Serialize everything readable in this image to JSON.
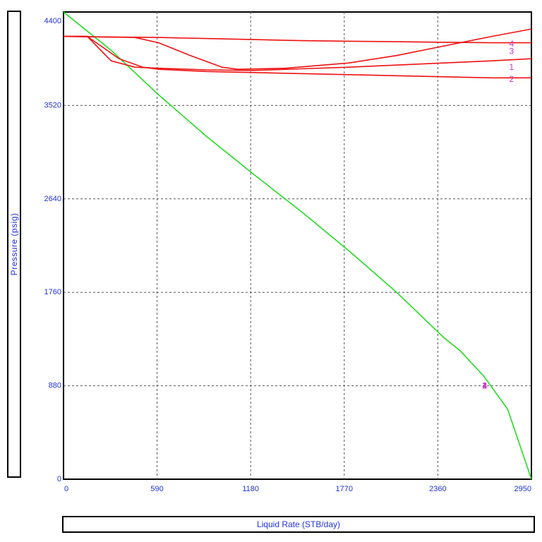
{
  "chart_data": {
    "type": "line",
    "xlabel": "Liquid Rate (STB/day)",
    "ylabel": "Pressure (psig)",
    "xlim": [
      0,
      2950
    ],
    "ylim": [
      0,
      4400
    ],
    "x_ticks": [
      "0",
      "590",
      "1180",
      "1770",
      "2360",
      "2950"
    ],
    "y_ticks": [
      "0",
      "880",
      "1760",
      "2640",
      "3520",
      "4400"
    ],
    "grid": true,
    "colors": {
      "ipr": "#22dd22",
      "vlp": "#ee1111",
      "axis_text": "#2233dd",
      "curve_label": "#cc33cc"
    },
    "series": [
      {
        "role": "ipr",
        "x": [
          0,
          300,
          600,
          900,
          1200,
          1500,
          1800,
          2100,
          2400,
          2500,
          2650,
          2800,
          2950
        ],
        "y": [
          4400,
          4040,
          3620,
          3230,
          2870,
          2520,
          2150,
          1760,
          1330,
          1210,
          970,
          660,
          0
        ]
      },
      {
        "role": "vlp",
        "label": "1",
        "x": [
          0,
          150,
          300,
          450,
          600,
          900,
          1200,
          1500,
          1800,
          2100,
          2400,
          2700,
          2950
        ],
        "y": [
          4170,
          4170,
          3940,
          3880,
          3870,
          3855,
          3850,
          3865,
          3880,
          3900,
          3920,
          3940,
          3960
        ]
      },
      {
        "role": "vlp",
        "label": "2",
        "x": [
          0,
          150,
          350,
          500,
          600,
          900,
          1200,
          1500,
          1800,
          2100,
          2400,
          2700,
          2950
        ],
        "y": [
          4170,
          4170,
          3960,
          3880,
          3860,
          3840,
          3830,
          3820,
          3810,
          3800,
          3790,
          3780,
          3780
        ]
      },
      {
        "role": "vlp",
        "label": "3",
        "x": [
          0,
          300,
          600,
          900,
          1200,
          1500,
          1800,
          2100,
          2400,
          2700,
          2950
        ],
        "y": [
          4170,
          4165,
          4160,
          4150,
          4140,
          4130,
          4125,
          4120,
          4115,
          4110,
          4110
        ]
      },
      {
        "role": "vlp",
        "label": "4",
        "x": [
          0,
          450,
          600,
          800,
          1000,
          1100,
          1400,
          1800,
          2100,
          2400,
          2700,
          2950
        ],
        "y": [
          4170,
          4160,
          4110,
          3990,
          3880,
          3860,
          3870,
          3920,
          3990,
          4080,
          4170,
          4240
        ]
      }
    ],
    "annotations": [
      {
        "text": "1",
        "x": 2640,
        "y": 880
      },
      {
        "text": "2",
        "x": 2640,
        "y": 880
      },
      {
        "text": "3",
        "x": 2640,
        "y": 880
      },
      {
        "text": "4",
        "x": 2640,
        "y": 880
      },
      {
        "text": "1",
        "x": 2810,
        "y": 3880
      },
      {
        "text": "2",
        "x": 2810,
        "y": 3770
      },
      {
        "text": "3",
        "x": 2810,
        "y": 4030
      },
      {
        "text": "4",
        "x": 2810,
        "y": 4100
      }
    ]
  }
}
